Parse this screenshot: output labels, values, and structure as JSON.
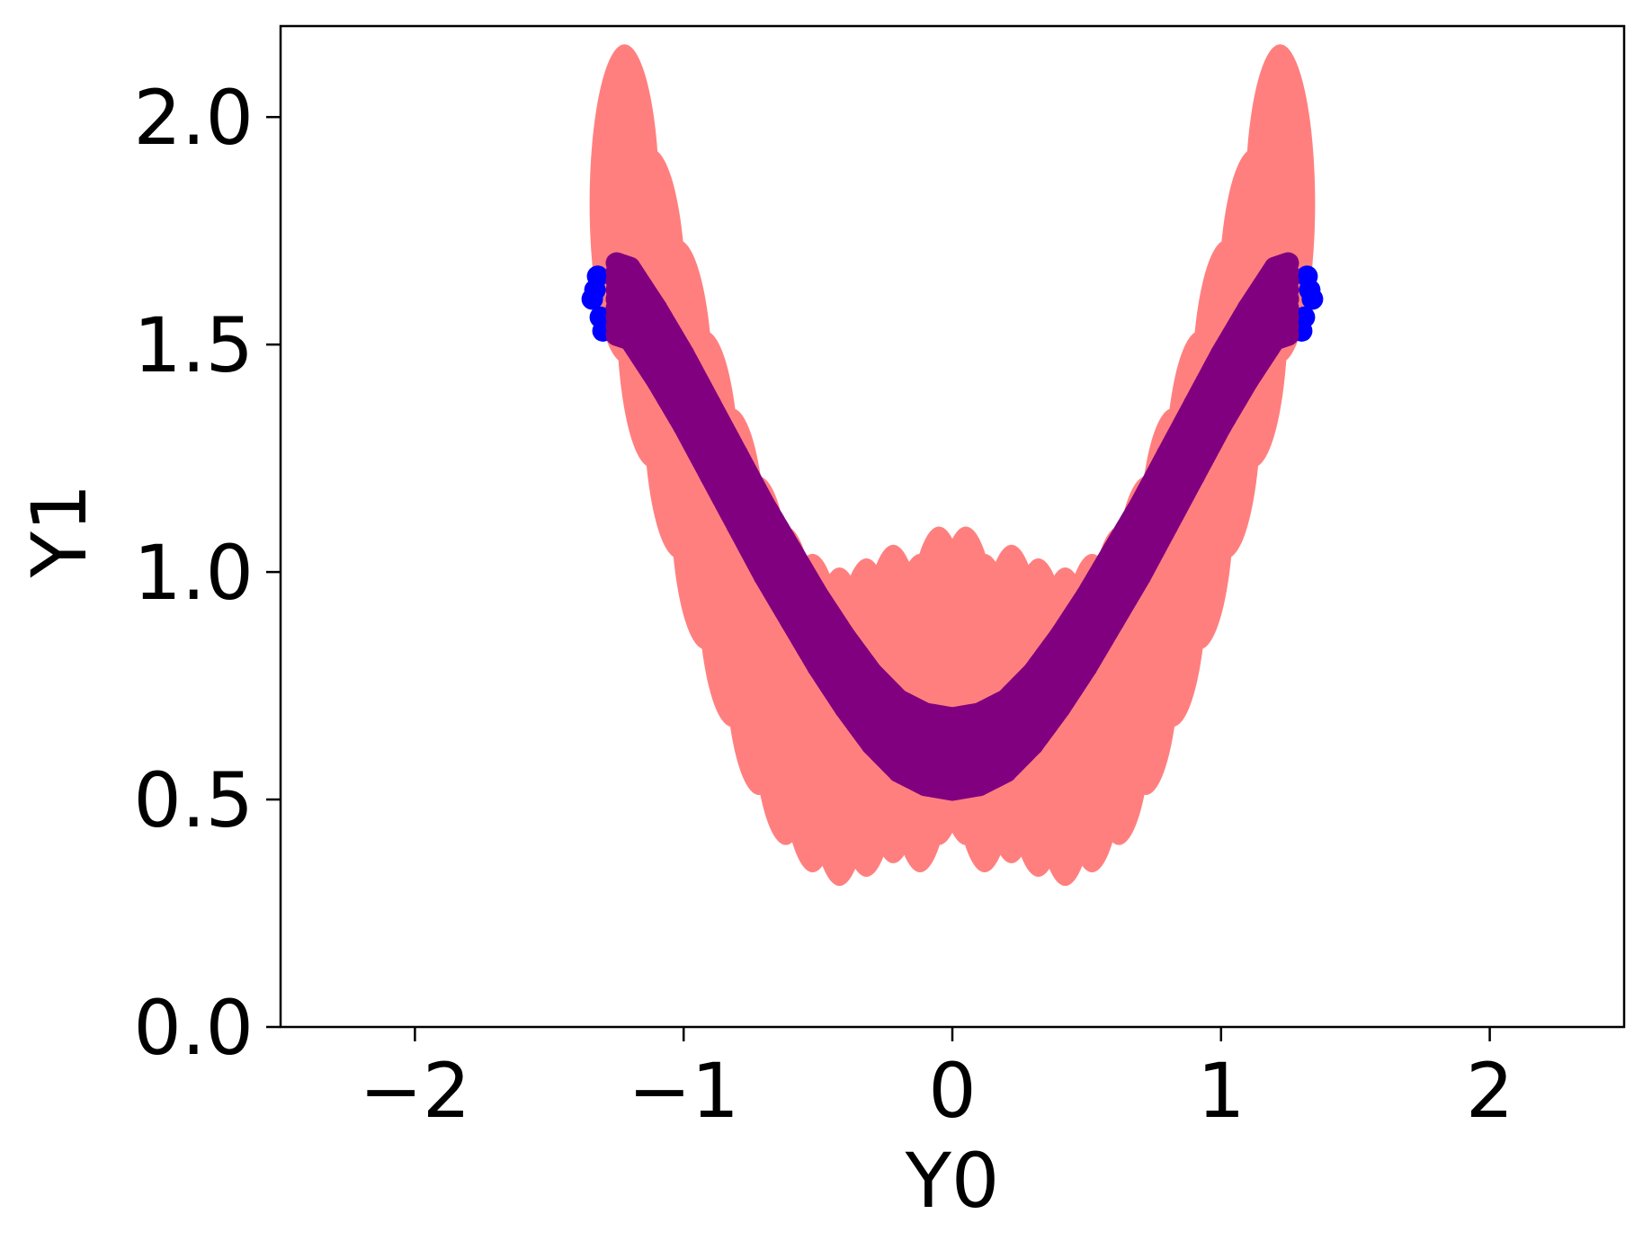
{
  "chart_data": {
    "type": "scatter",
    "title": "",
    "xlabel": "Y0",
    "ylabel": "Y1",
    "xlim": [
      -2.5,
      2.5
    ],
    "ylim": [
      0.0,
      2.2
    ],
    "xticks": [
      -2,
      -1,
      0,
      1,
      2
    ],
    "yticks": [
      0.0,
      0.5,
      1.0,
      1.5,
      2.0
    ],
    "xtick_labels": [
      "−2",
      "−1",
      "0",
      "1",
      "2"
    ],
    "ytick_labels": [
      "0.0",
      "0.5",
      "1.0",
      "1.5",
      "2.0"
    ],
    "grid": false,
    "legend": "none",
    "series": [
      {
        "color": "#ff7f7f",
        "marker": "large ellipse (spread band)",
        "x": [
          -1.22,
          -1.12,
          -1.02,
          -0.92,
          -0.82,
          -0.72,
          -0.62,
          -0.52,
          -0.42,
          -0.32,
          -0.22,
          -0.12,
          -0.05,
          0.05,
          0.12,
          0.22,
          0.32,
          0.42,
          0.52,
          0.62,
          0.72,
          0.82,
          0.92,
          1.02,
          1.12,
          1.22
        ],
        "y": [
          1.48,
          1.25,
          1.05,
          0.85,
          0.68,
          0.53,
          0.42,
          0.36,
          0.33,
          0.35,
          0.38,
          0.36,
          0.42,
          0.42,
          0.36,
          0.38,
          0.35,
          0.33,
          0.36,
          0.42,
          0.53,
          0.68,
          0.85,
          1.05,
          1.25,
          1.48
        ]
      },
      {
        "color": "#0000ff",
        "marker": "circle",
        "x": [
          -1.34,
          -1.33,
          -1.32,
          -1.31,
          -1.3,
          1.3,
          1.31,
          1.32,
          1.33,
          1.34
        ],
        "y": [
          1.6,
          1.62,
          1.65,
          1.56,
          1.53,
          1.53,
          1.56,
          1.65,
          1.62,
          1.6
        ]
      },
      {
        "color": "#800080",
        "marker": "circle",
        "x": [
          -1.25,
          -1.2,
          -1.1,
          -1.0,
          -0.9,
          -0.8,
          -0.7,
          -0.6,
          -0.5,
          -0.4,
          -0.3,
          -0.2,
          -0.1,
          0.0,
          0.1,
          0.2,
          0.3,
          0.4,
          0.5,
          0.6,
          0.7,
          0.8,
          0.9,
          1.0,
          1.1,
          1.2,
          1.25
        ],
        "y": [
          1.6,
          1.59,
          1.5,
          1.4,
          1.29,
          1.18,
          1.07,
          0.97,
          0.87,
          0.78,
          0.7,
          0.64,
          0.61,
          0.6,
          0.61,
          0.64,
          0.7,
          0.78,
          0.87,
          0.97,
          1.07,
          1.18,
          1.29,
          1.4,
          1.5,
          1.59,
          1.6
        ]
      }
    ]
  }
}
